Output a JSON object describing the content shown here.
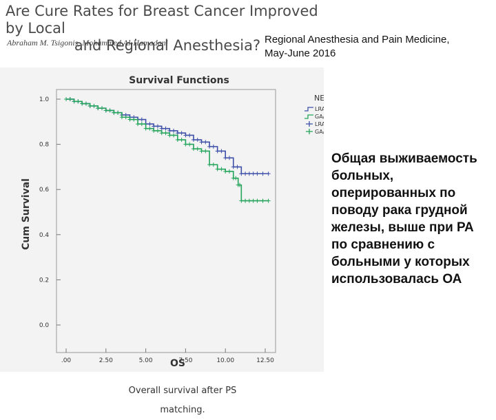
{
  "header": {
    "title_line1": "Are Cure Rates for Breast Cancer Improved by Local",
    "title_line2": "and Regional Anesthesia?",
    "authors": "Abraham M. Tsigonis, Mohammed Al-Hamadani",
    "journal_line1": "Regional Anesthesia and Pain Medicine,",
    "journal_line2": "May-June 2016"
  },
  "caption": "Overall survival after PS matching.",
  "note": "Общая выживаемость больных, оперированных по поводу рака грудной железы, выше при РА по сравнению с больными у которых использовалась ОА",
  "colors": {
    "lra": "#3d4fa8",
    "ga": "#22a45a",
    "background": "#f3f3f3"
  },
  "chart_data": {
    "type": "line",
    "step": true,
    "title": "Survival Functions",
    "xlabel": "OS",
    "ylabel": "Cum Survival",
    "xlim": [
      0,
      12.5
    ],
    "ylim": [
      0,
      1.0
    ],
    "x_ticks": [
      0,
      2.5,
      5,
      7.5,
      10,
      12.5
    ],
    "x_tick_labels": [
      ".00",
      "2.50",
      "5.00",
      "7.50",
      "10.00",
      "12.50"
    ],
    "y_ticks": [
      0,
      0.2,
      0.4,
      0.6,
      0.8,
      1.0
    ],
    "y_tick_labels": [
      "0.0",
      "0.2",
      "0.4",
      "0.6",
      "0.8",
      "1.0"
    ],
    "legend_title": "NEWGROUP",
    "legend_position": "top-right",
    "legend": [
      "LRA",
      "GA/GA+PVB",
      "LRA-censored",
      "GA/GA+PVB-censored"
    ],
    "series": [
      {
        "name": "LRA",
        "color": "#3d4fa8",
        "x": [
          0,
          0.5,
          1.0,
          1.5,
          2.0,
          2.5,
          3.0,
          3.5,
          4.0,
          4.5,
          5.0,
          5.5,
          6.0,
          6.5,
          7.0,
          7.5,
          8.0,
          8.5,
          9.0,
          9.5,
          10.0,
          10.5,
          11.0,
          11.5,
          12.0,
          12.7
        ],
        "y": [
          1.0,
          0.99,
          0.98,
          0.97,
          0.96,
          0.95,
          0.94,
          0.93,
          0.92,
          0.91,
          0.89,
          0.88,
          0.87,
          0.86,
          0.85,
          0.84,
          0.82,
          0.81,
          0.79,
          0.77,
          0.74,
          0.7,
          0.67,
          0.67,
          0.67,
          0.67
        ]
      },
      {
        "name": "GA/GA+PVB",
        "color": "#22a45a",
        "x": [
          0,
          0.5,
          1.0,
          1.5,
          2.0,
          2.5,
          3.0,
          3.5,
          4.0,
          4.5,
          5.0,
          5.5,
          6.0,
          6.5,
          7.0,
          7.5,
          8.0,
          8.5,
          9.0,
          9.5,
          10.0,
          10.5,
          10.8,
          11.0,
          11.5,
          12.0,
          12.7
        ],
        "y": [
          1.0,
          0.99,
          0.98,
          0.97,
          0.96,
          0.95,
          0.94,
          0.92,
          0.91,
          0.89,
          0.87,
          0.86,
          0.85,
          0.84,
          0.82,
          0.8,
          0.78,
          0.77,
          0.71,
          0.69,
          0.68,
          0.65,
          0.62,
          0.55,
          0.55,
          0.55,
          0.55
        ]
      }
    ]
  }
}
